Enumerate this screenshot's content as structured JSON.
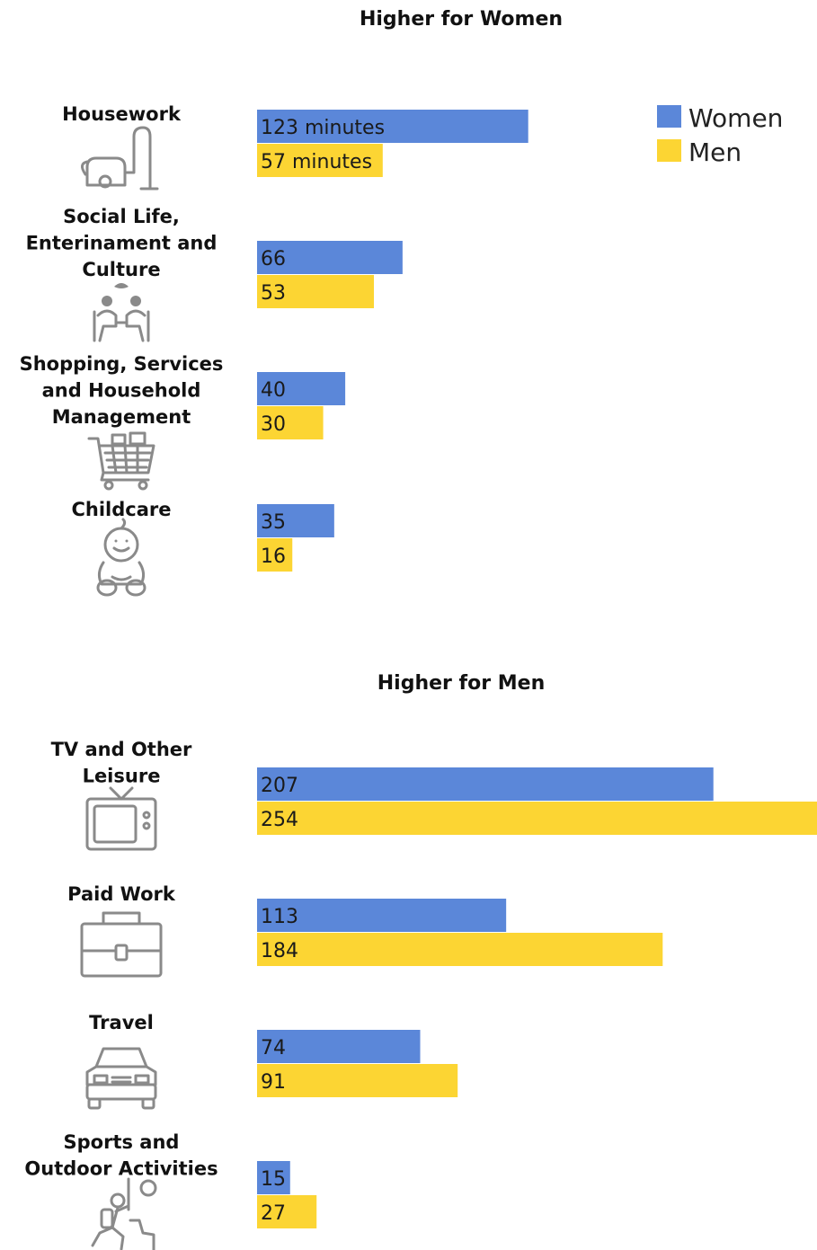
{
  "colors": {
    "women": "#5b87d9",
    "men": "#fcd533"
  },
  "legend": {
    "women_label": "Women",
    "men_label": "Men",
    "placement": "top-right"
  },
  "chart_data": {
    "type": "bar",
    "orientation": "horizontal",
    "title": "",
    "xlim": [
      0,
      254
    ],
    "grid": false,
    "groups": [
      {
        "title": "Higher for Women",
        "categories": [
          {
            "label_lines": [
              "Housework"
            ],
            "icon": "vacuum-cleaner-icon",
            "women": 123,
            "men": 57,
            "women_label": "123 minutes",
            "men_label": "57 minutes"
          },
          {
            "label_lines": [
              "Social Life,",
              "Enterinament and",
              "Culture"
            ],
            "icon": "people-talking-icon",
            "women": 66,
            "men": 53,
            "women_label": "66",
            "men_label": "53"
          },
          {
            "label_lines": [
              "Shopping, Services",
              "and Household",
              "Management"
            ],
            "icon": "shopping-cart-icon",
            "women": 40,
            "men": 30,
            "women_label": "40",
            "men_label": "30"
          },
          {
            "label_lines": [
              "Childcare"
            ],
            "icon": "baby-icon",
            "women": 35,
            "men": 16,
            "women_label": "35",
            "men_label": "16"
          }
        ]
      },
      {
        "title": "Higher for Men",
        "categories": [
          {
            "label_lines": [
              "TV and Other",
              "Leisure"
            ],
            "icon": "television-icon",
            "women": 207,
            "men": 254,
            "women_label": "207",
            "men_label": "254"
          },
          {
            "label_lines": [
              "Paid Work"
            ],
            "icon": "briefcase-icon",
            "women": 113,
            "men": 184,
            "women_label": "113",
            "men_label": "184"
          },
          {
            "label_lines": [
              "Travel"
            ],
            "icon": "car-icon",
            "women": 74,
            "men": 91,
            "women_label": "74",
            "men_label": "91"
          },
          {
            "label_lines": [
              "Sports and",
              "Outdoor Activities"
            ],
            "icon": "climber-icon",
            "women": 15,
            "men": 27,
            "women_label": "15",
            "men_label": "27"
          }
        ]
      }
    ]
  }
}
